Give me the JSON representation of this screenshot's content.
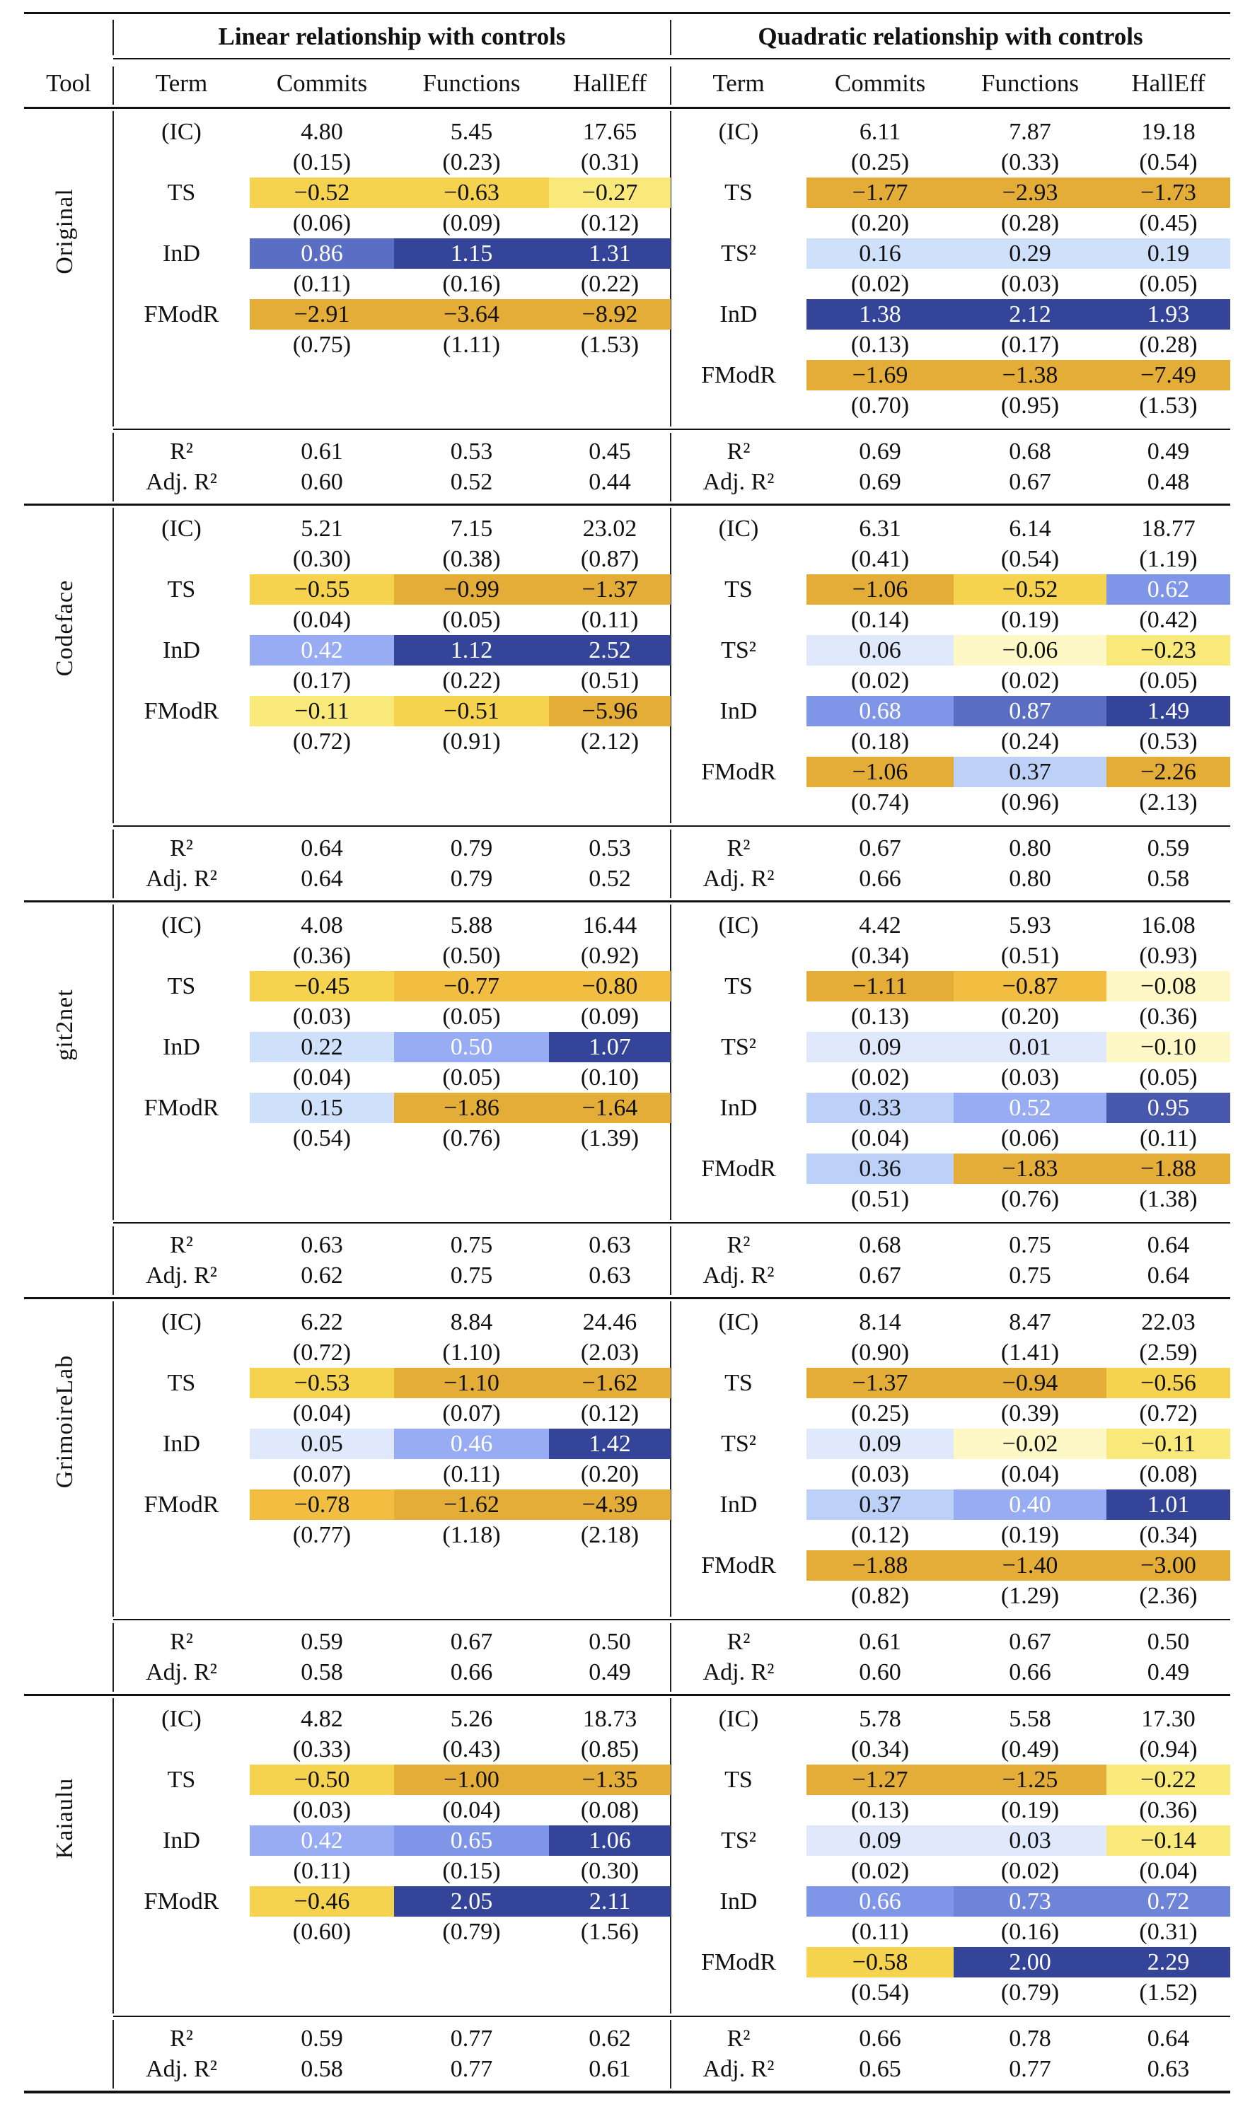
{
  "header": {
    "group_linear": "Linear relationship with controls",
    "group_quadratic": "Quadratic relationship with controls",
    "tool": "Tool",
    "term": "Term",
    "columns": [
      "Commits",
      "Functions",
      "HallEff"
    ]
  },
  "fit_labels": {
    "r2": "R²",
    "adj_r2": "Adj. R²"
  },
  "palette": {
    "neg": [
      "#fdf8c6",
      "#f9e97a",
      "#f6d34e",
      "#f2be42",
      "#e4ad37"
    ],
    "pos": [
      "#dfe9fb",
      "#cfe0fb",
      "#bcd0f8",
      "#97acf2",
      "#7f96e8",
      "#6e84d8",
      "#5a6fc4",
      "#4858ad",
      "#334499"
    ]
  },
  "blocks": [
    {
      "tool": "Original",
      "linear": {
        "rows": [
          {
            "term": "(IC)",
            "values": [
              "4.80",
              "5.45",
              "17.65"
            ],
            "se": [
              "(0.15)",
              "(0.23)",
              "(0.31)"
            ]
          },
          {
            "term": "TS",
            "values": [
              "−0.52",
              "−0.63",
              "−0.27"
            ],
            "se": [
              "(0.06)",
              "(0.09)",
              "(0.12)"
            ]
          },
          {
            "term": "InD",
            "values": [
              "0.86",
              "1.15",
              "1.31"
            ],
            "se": [
              "(0.11)",
              "(0.16)",
              "(0.22)"
            ]
          },
          {
            "term": "FModR",
            "values": [
              "−2.91",
              "−3.64",
              "−8.92"
            ],
            "se": [
              "(0.75)",
              "(1.11)",
              "(1.53)"
            ]
          }
        ],
        "r2": [
          "0.61",
          "0.53",
          "0.45"
        ],
        "adj_r2": [
          "0.60",
          "0.52",
          "0.44"
        ]
      },
      "quadratic": {
        "rows": [
          {
            "term": "(IC)",
            "values": [
              "6.11",
              "7.87",
              "19.18"
            ],
            "se": [
              "(0.25)",
              "(0.33)",
              "(0.54)"
            ]
          },
          {
            "term": "TS",
            "values": [
              "−1.77",
              "−2.93",
              "−1.73"
            ],
            "se": [
              "(0.20)",
              "(0.28)",
              "(0.45)"
            ]
          },
          {
            "term": "TS²",
            "values": [
              "0.16",
              "0.29",
              "0.19"
            ],
            "se": [
              "(0.02)",
              "(0.03)",
              "(0.05)"
            ]
          },
          {
            "term": "InD",
            "values": [
              "1.38",
              "2.12",
              "1.93"
            ],
            "se": [
              "(0.13)",
              "(0.17)",
              "(0.28)"
            ]
          },
          {
            "term": "FModR",
            "values": [
              "−1.69",
              "−1.38",
              "−7.49"
            ],
            "se": [
              "(0.70)",
              "(0.95)",
              "(1.53)"
            ]
          }
        ],
        "r2": [
          "0.69",
          "0.68",
          "0.49"
        ],
        "adj_r2": [
          "0.69",
          "0.67",
          "0.48"
        ]
      }
    },
    {
      "tool": "Codeface",
      "linear": {
        "rows": [
          {
            "term": "(IC)",
            "values": [
              "5.21",
              "7.15",
              "23.02"
            ],
            "se": [
              "(0.30)",
              "(0.38)",
              "(0.87)"
            ]
          },
          {
            "term": "TS",
            "values": [
              "−0.55",
              "−0.99",
              "−1.37"
            ],
            "se": [
              "(0.04)",
              "(0.05)",
              "(0.11)"
            ]
          },
          {
            "term": "InD",
            "values": [
              "0.42",
              "1.12",
              "2.52"
            ],
            "se": [
              "(0.17)",
              "(0.22)",
              "(0.51)"
            ]
          },
          {
            "term": "FModR",
            "values": [
              "−0.11",
              "−0.51",
              "−5.96"
            ],
            "se": [
              "(0.72)",
              "(0.91)",
              "(2.12)"
            ]
          }
        ],
        "r2": [
          "0.64",
          "0.79",
          "0.53"
        ],
        "adj_r2": [
          "0.64",
          "0.79",
          "0.52"
        ]
      },
      "quadratic": {
        "rows": [
          {
            "term": "(IC)",
            "values": [
              "6.31",
              "6.14",
              "18.77"
            ],
            "se": [
              "(0.41)",
              "(0.54)",
              "(1.19)"
            ]
          },
          {
            "term": "TS",
            "values": [
              "−1.06",
              "−0.52",
              "0.62"
            ],
            "se": [
              "(0.14)",
              "(0.19)",
              "(0.42)"
            ]
          },
          {
            "term": "TS²",
            "values": [
              "0.06",
              "−0.06",
              "−0.23"
            ],
            "se": [
              "(0.02)",
              "(0.02)",
              "(0.05)"
            ]
          },
          {
            "term": "InD",
            "values": [
              "0.68",
              "0.87",
              "1.49"
            ],
            "se": [
              "(0.18)",
              "(0.24)",
              "(0.53)"
            ]
          },
          {
            "term": "FModR",
            "values": [
              "−1.06",
              "0.37",
              "−2.26"
            ],
            "se": [
              "(0.74)",
              "(0.96)",
              "(2.13)"
            ]
          }
        ],
        "r2": [
          "0.67",
          "0.80",
          "0.59"
        ],
        "adj_r2": [
          "0.66",
          "0.80",
          "0.58"
        ]
      }
    },
    {
      "tool": "git2net",
      "linear": {
        "rows": [
          {
            "term": "(IC)",
            "values": [
              "4.08",
              "5.88",
              "16.44"
            ],
            "se": [
              "(0.36)",
              "(0.50)",
              "(0.92)"
            ]
          },
          {
            "term": "TS",
            "values": [
              "−0.45",
              "−0.77",
              "−0.80"
            ],
            "se": [
              "(0.03)",
              "(0.05)",
              "(0.09)"
            ]
          },
          {
            "term": "InD",
            "values": [
              "0.22",
              "0.50",
              "1.07"
            ],
            "se": [
              "(0.04)",
              "(0.05)",
              "(0.10)"
            ]
          },
          {
            "term": "FModR",
            "values": [
              "0.15",
              "−1.86",
              "−1.64"
            ],
            "se": [
              "(0.54)",
              "(0.76)",
              "(1.39)"
            ]
          }
        ],
        "r2": [
          "0.63",
          "0.75",
          "0.63"
        ],
        "adj_r2": [
          "0.62",
          "0.75",
          "0.63"
        ]
      },
      "quadratic": {
        "rows": [
          {
            "term": "(IC)",
            "values": [
              "4.42",
              "5.93",
              "16.08"
            ],
            "se": [
              "(0.34)",
              "(0.51)",
              "(0.93)"
            ]
          },
          {
            "term": "TS",
            "values": [
              "−1.11",
              "−0.87",
              "−0.08"
            ],
            "se": [
              "(0.13)",
              "(0.20)",
              "(0.36)"
            ]
          },
          {
            "term": "TS²",
            "values": [
              "0.09",
              "0.01",
              "−0.10"
            ],
            "se": [
              "(0.02)",
              "(0.03)",
              "(0.05)"
            ]
          },
          {
            "term": "InD",
            "values": [
              "0.33",
              "0.52",
              "0.95"
            ],
            "se": [
              "(0.04)",
              "(0.06)",
              "(0.11)"
            ]
          },
          {
            "term": "FModR",
            "values": [
              "0.36",
              "−1.83",
              "−1.88"
            ],
            "se": [
              "(0.51)",
              "(0.76)",
              "(1.38)"
            ]
          }
        ],
        "r2": [
          "0.68",
          "0.75",
          "0.64"
        ],
        "adj_r2": [
          "0.67",
          "0.75",
          "0.64"
        ]
      }
    },
    {
      "tool": "GrimoireLab",
      "linear": {
        "rows": [
          {
            "term": "(IC)",
            "values": [
              "6.22",
              "8.84",
              "24.46"
            ],
            "se": [
              "(0.72)",
              "(1.10)",
              "(2.03)"
            ]
          },
          {
            "term": "TS",
            "values": [
              "−0.53",
              "−1.10",
              "−1.62"
            ],
            "se": [
              "(0.04)",
              "(0.07)",
              "(0.12)"
            ]
          },
          {
            "term": "InD",
            "values": [
              "0.05",
              "0.46",
              "1.42"
            ],
            "se": [
              "(0.07)",
              "(0.11)",
              "(0.20)"
            ]
          },
          {
            "term": "FModR",
            "values": [
              "−0.78",
              "−1.62",
              "−4.39"
            ],
            "se": [
              "(0.77)",
              "(1.18)",
              "(2.18)"
            ]
          }
        ],
        "r2": [
          "0.59",
          "0.67",
          "0.50"
        ],
        "adj_r2": [
          "0.58",
          "0.66",
          "0.49"
        ]
      },
      "quadratic": {
        "rows": [
          {
            "term": "(IC)",
            "values": [
              "8.14",
              "8.47",
              "22.03"
            ],
            "se": [
              "(0.90)",
              "(1.41)",
              "(2.59)"
            ]
          },
          {
            "term": "TS",
            "values": [
              "−1.37",
              "−0.94",
              "−0.56"
            ],
            "se": [
              "(0.25)",
              "(0.39)",
              "(0.72)"
            ]
          },
          {
            "term": "TS²",
            "values": [
              "0.09",
              "−0.02",
              "−0.11"
            ],
            "se": [
              "(0.03)",
              "(0.04)",
              "(0.08)"
            ]
          },
          {
            "term": "InD",
            "values": [
              "0.37",
              "0.40",
              "1.01"
            ],
            "se": [
              "(0.12)",
              "(0.19)",
              "(0.34)"
            ]
          },
          {
            "term": "FModR",
            "values": [
              "−1.88",
              "−1.40",
              "−3.00"
            ],
            "se": [
              "(0.82)",
              "(1.29)",
              "(2.36)"
            ]
          }
        ],
        "r2": [
          "0.61",
          "0.67",
          "0.50"
        ],
        "adj_r2": [
          "0.60",
          "0.66",
          "0.49"
        ]
      }
    },
    {
      "tool": "Kaiaulu",
      "linear": {
        "rows": [
          {
            "term": "(IC)",
            "values": [
              "4.82",
              "5.26",
              "18.73"
            ],
            "se": [
              "(0.33)",
              "(0.43)",
              "(0.85)"
            ]
          },
          {
            "term": "TS",
            "values": [
              "−0.50",
              "−1.00",
              "−1.35"
            ],
            "se": [
              "(0.03)",
              "(0.04)",
              "(0.08)"
            ]
          },
          {
            "term": "InD",
            "values": [
              "0.42",
              "0.65",
              "1.06"
            ],
            "se": [
              "(0.11)",
              "(0.15)",
              "(0.30)"
            ]
          },
          {
            "term": "FModR",
            "values": [
              "−0.46",
              "2.05",
              "2.11"
            ],
            "se": [
              "(0.60)",
              "(0.79)",
              "(1.56)"
            ]
          }
        ],
        "r2": [
          "0.59",
          "0.77",
          "0.62"
        ],
        "adj_r2": [
          "0.58",
          "0.77",
          "0.61"
        ]
      },
      "quadratic": {
        "rows": [
          {
            "term": "(IC)",
            "values": [
              "5.78",
              "5.58",
              "17.30"
            ],
            "se": [
              "(0.34)",
              "(0.49)",
              "(0.94)"
            ]
          },
          {
            "term": "TS",
            "values": [
              "−1.27",
              "−1.25",
              "−0.22"
            ],
            "se": [
              "(0.13)",
              "(0.19)",
              "(0.36)"
            ]
          },
          {
            "term": "TS²",
            "values": [
              "0.09",
              "0.03",
              "−0.14"
            ],
            "se": [
              "(0.02)",
              "(0.02)",
              "(0.04)"
            ]
          },
          {
            "term": "InD",
            "values": [
              "0.66",
              "0.73",
              "0.72"
            ],
            "se": [
              "(0.11)",
              "(0.16)",
              "(0.31)"
            ]
          },
          {
            "term": "FModR",
            "values": [
              "−0.58",
              "2.00",
              "2.29"
            ],
            "se": [
              "(0.54)",
              "(0.79)",
              "(1.52)"
            ]
          }
        ],
        "r2": [
          "0.66",
          "0.78",
          "0.64"
        ],
        "adj_r2": [
          "0.65",
          "0.77",
          "0.63"
        ]
      }
    }
  ]
}
